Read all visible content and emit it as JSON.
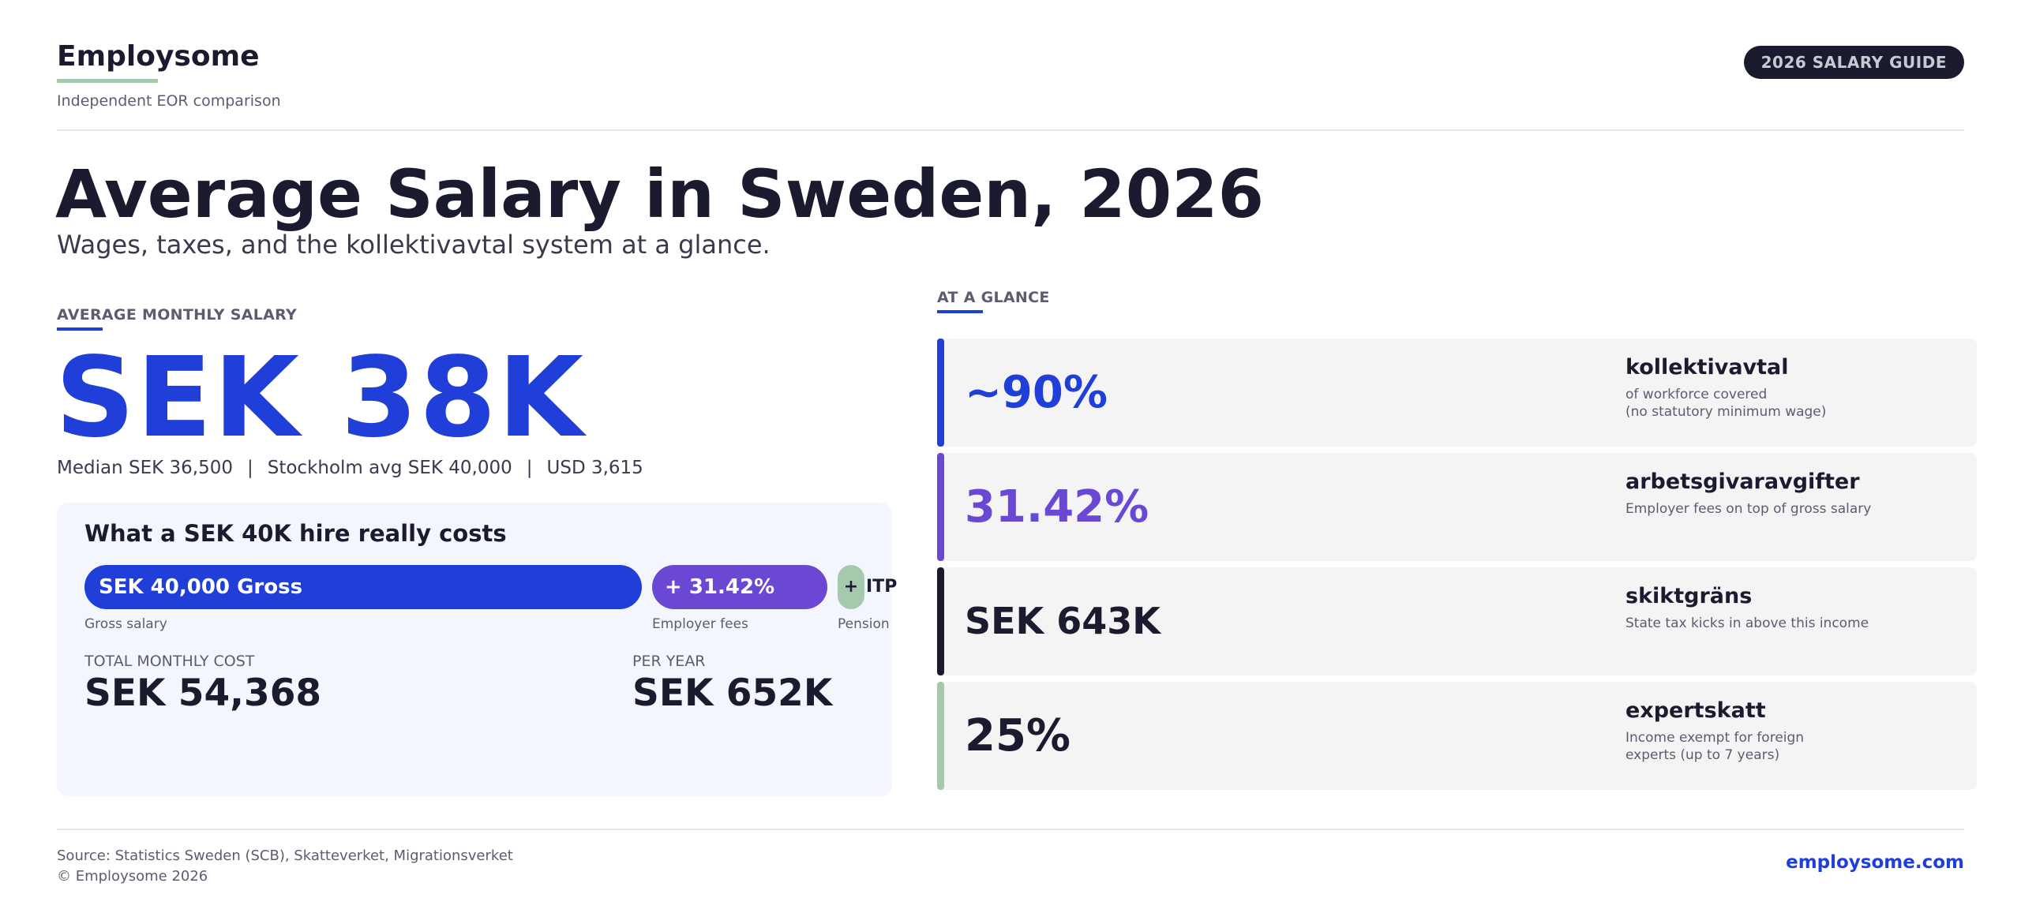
{
  "brand": {
    "name": "Employsome",
    "tagline": "Independent EOR comparison"
  },
  "badge": "2026 SALARY GUIDE",
  "hero": {
    "title": "Average Salary in Sweden, 2026",
    "subtitle": "Wages, taxes, and the kollektivavtal system at a glance."
  },
  "salary": {
    "section_label": "AVERAGE MONTHLY SALARY",
    "value": "SEK 38K",
    "median": "Median SEK 36,500",
    "stockholm": "Stockholm avg SEK 40,000",
    "usd": "USD 3,615",
    "separator": "|"
  },
  "cost_card": {
    "title": "What a SEK 40K hire really costs",
    "segments": [
      {
        "label": "SEK 40,000  Gross",
        "caption": "Gross salary",
        "color": "#1f3fd8"
      },
      {
        "label": "+ 31.42%",
        "caption": "Employer fees",
        "color": "#6b48d3"
      },
      {
        "label": "+",
        "extra": "ITP",
        "caption": "Pension",
        "color": "#a5c9ad"
      }
    ],
    "total_label": "TOTAL MONTHLY COST",
    "total_value": "SEK 54,368",
    "year_label": "PER YEAR",
    "year_value": "SEK 652K"
  },
  "glance": {
    "section_label": "AT A GLANCE",
    "items": [
      {
        "stat": "~90%",
        "term": "kollektivavtal",
        "desc": "of workforce covered\n(no statutory minimum wage)",
        "color": "#1f3fd8",
        "stat_color": "#1f3fd8"
      },
      {
        "stat": "31.42%",
        "term": "arbetsgivaravgifter",
        "desc": "Employer fees on top of gross salary",
        "color": "#6b48d3",
        "stat_color": "#6b48d3"
      },
      {
        "stat": "SEK 643K",
        "term": "skiktgräns",
        "desc": "State tax kicks in above this income",
        "color": "#1b1b2f",
        "stat_color": "#1b1b2f"
      },
      {
        "stat": "25%",
        "term": "expertskatt",
        "desc": "Income exempt for foreign\nexperts (up to 7 years)",
        "color": "#a5c9ad",
        "stat_color": "#1b1b2f"
      }
    ]
  },
  "footer": {
    "source": "Source: Statistics Sweden (SCB), Skatteverket, Migrationsverket",
    "copyright": "© Employsome 2026",
    "url": "employsome.com"
  }
}
